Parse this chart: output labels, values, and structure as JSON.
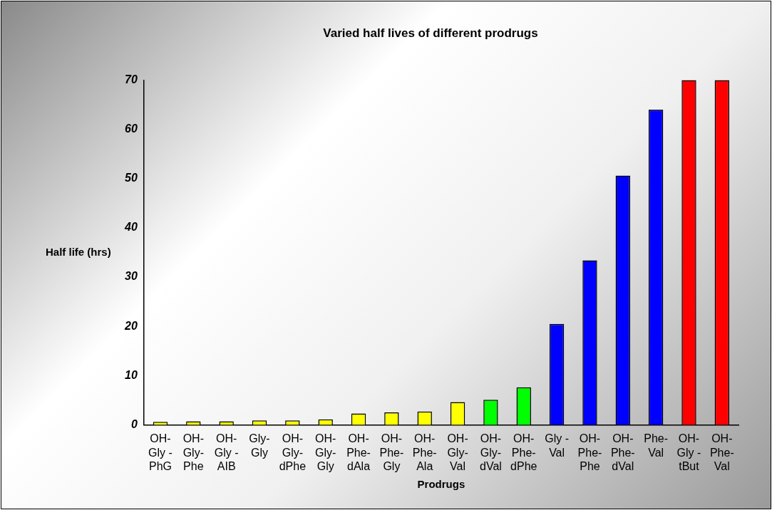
{
  "chart_data": {
    "type": "bar",
    "title": "Varied half lives of different prodrugs",
    "xlabel": "Prodrugs",
    "ylabel": "Half life (hrs)",
    "categories": [
      "OH-Gly -PhG",
      "OH-Gly-Phe",
      "OH-Gly -AIB",
      "Gly-Gly",
      "OH-Gly-dPhe",
      "OH-Gly-Gly",
      "OH-Phe-dAla",
      "OH-Phe-Gly",
      "OH-Phe-Ala",
      "OH-Gly-Val",
      "OH-Gly-dVal",
      "OH-Phe-dPhe",
      "Gly -Val",
      "OH-Phe-Phe",
      "OH-Phe-dVal",
      "Phe-Val",
      "OH-Gly -tBut",
      "OH-Phe-Val"
    ],
    "values": [
      0.6,
      0.7,
      0.7,
      0.9,
      0.9,
      1.1,
      2.3,
      2.5,
      2.7,
      4.6,
      5.1,
      7.6,
      20.5,
      33.4,
      50.6,
      64,
      70,
      70
    ],
    "colors": [
      "#ffff00",
      "#ffff00",
      "#ffff00",
      "#ffff00",
      "#ffff00",
      "#ffff00",
      "#ffff00",
      "#ffff00",
      "#ffff00",
      "#ffff00",
      "#00ff00",
      "#00ff00",
      "#0000ff",
      "#0000ff",
      "#0000ff",
      "#0000ff",
      "#ff0000",
      "#ff0000"
    ],
    "ylim": [
      0,
      70
    ],
    "yticks": [
      0,
      10,
      20,
      30,
      40,
      50,
      60,
      70
    ],
    "grid": false,
    "legend": false
  }
}
